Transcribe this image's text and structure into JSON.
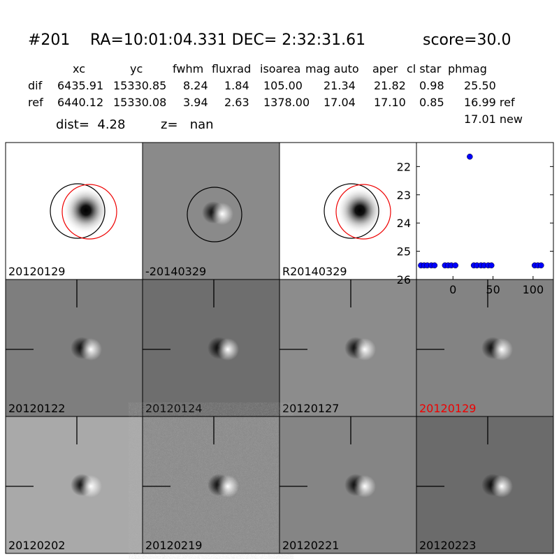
{
  "header": {
    "id": "#201",
    "coords": "RA=10:01:04.331 DEC= 2:32:31.61",
    "score": "score=30.0"
  },
  "table": {
    "columns": [
      "xc",
      "yc",
      "fwhm",
      "fluxrad",
      "isoarea",
      "mag auto",
      "aper",
      "cl star",
      "phmag"
    ],
    "rows": [
      [
        "dif",
        "6435.91",
        "15330.85",
        "8.24",
        "1.84",
        "105.00",
        "21.34",
        "21.82",
        "0.98",
        "25.50"
      ],
      [
        "ref",
        "6440.12",
        "15330.08",
        "3.94",
        "2.63",
        "1378.00",
        "17.04",
        "17.10",
        "0.85",
        "16.99 ref"
      ]
    ],
    "note": "17.01 new"
  },
  "dist": "dist=  4.28",
  "z": "z=   nan",
  "panels": [
    "20120129",
    "-20140329",
    "R20140329",
    "20120122",
    "20120124",
    "20120127",
    "20120129",
    "20120202",
    "20120219",
    "20120221",
    "20120223"
  ],
  "chart_data": {
    "type": "scatter",
    "color": "#0000ff",
    "x": [
      -40,
      -36,
      -32,
      -27,
      -23,
      -10,
      -6,
      -2,
      3,
      21,
      26,
      30,
      35,
      39,
      44,
      48,
      102,
      106,
      110
    ],
    "values": [
      25.5,
      25.5,
      25.5,
      25.5,
      25.5,
      25.5,
      25.5,
      25.5,
      25.5,
      21.65,
      25.5,
      25.5,
      25.5,
      25.5,
      25.5,
      25.5,
      25.5,
      25.5,
      25.5
    ],
    "xlim": [
      -45.6,
      125.4
    ],
    "xticks": [
      0,
      50,
      100
    ],
    "ylim": [
      21.15,
      26
    ],
    "yticks": [
      22,
      23,
      24,
      25,
      26
    ],
    "y_inverted": true,
    "grid": false
  }
}
